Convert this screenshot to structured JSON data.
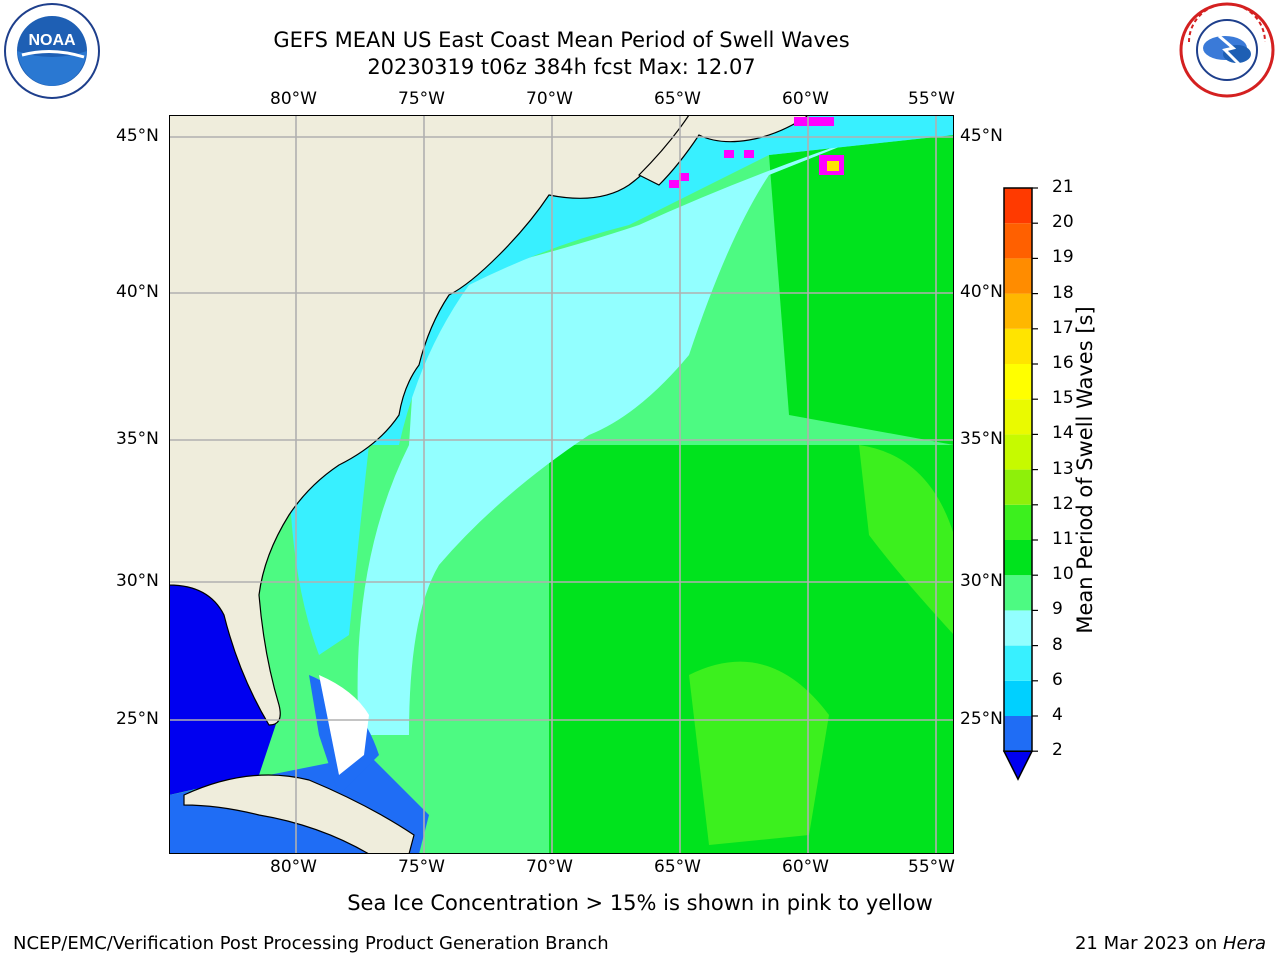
{
  "header": {
    "title_line1": "GEFS MEAN US East Coast Mean Period of Swell Waves",
    "title_line2": "20230319 t06z 384h fcst   Max: 12.07"
  },
  "logos": {
    "left": {
      "icon": "noaa-logo",
      "text": "NOAA",
      "ring": "NATIONAL OCEANIC AND ATMOSPHERIC ADMINISTRATION · U.S. DEPARTMENT OF COMMERCE"
    },
    "right": {
      "icon": "nws-logo",
      "ring": "NATIONAL WEATHER SERVICE"
    }
  },
  "map": {
    "lon_labels": [
      "80°W",
      "75°W",
      "70°W",
      "65°W",
      "60°W",
      "55°W"
    ],
    "lat_labels": [
      "45°N",
      "40°N",
      "35°N",
      "30°N",
      "25°N"
    ],
    "land_color": "#efeddc",
    "grid_color": "#b0b0b0"
  },
  "colorbar": {
    "label": "Mean Period of Swell Waves [s]",
    "ticks": [
      "2",
      "4",
      "6",
      "8",
      "9",
      "10",
      "11",
      "12",
      "13",
      "14",
      "15",
      "16",
      "17",
      "18",
      "19",
      "20",
      "21"
    ],
    "colors": [
      "#1f6df5",
      "#00d0ff",
      "#38f0ff",
      "#92ffff",
      "#4dfa82",
      "#00e31d",
      "#3cf01e",
      "#8ef00a",
      "#c6fa00",
      "#eafa00",
      "#ffff00",
      "#ffe400",
      "#ffb700",
      "#ff8c00",
      "#ff6000",
      "#ff3a00",
      "#ff0000"
    ],
    "under_color": "#0000f0"
  },
  "footer": {
    "note": "Sea Ice Concentration > 15% is shown in pink to yellow",
    "left": "NCEP/EMC/Verification Post Processing Product Generation Branch",
    "right_prefix": "21 Mar 2023 on ",
    "right_host": "Hera"
  }
}
